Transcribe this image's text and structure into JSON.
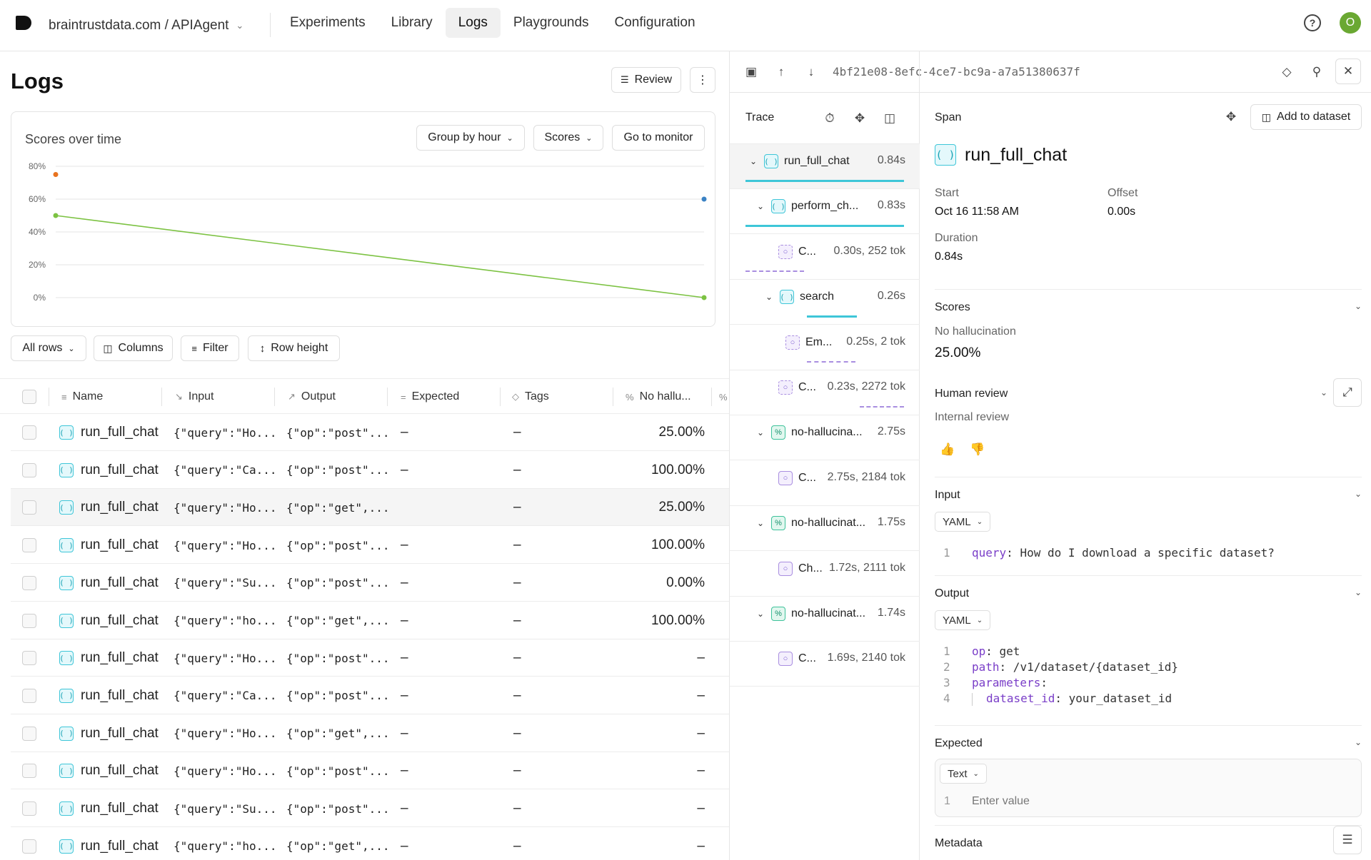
{
  "nav": {
    "project": "braintrustdata.com / APIAgent",
    "tabs": [
      {
        "label": "Experiments"
      },
      {
        "label": "Library"
      },
      {
        "label": "Logs"
      },
      {
        "label": "Playgrounds"
      },
      {
        "label": "Configuration"
      }
    ],
    "active_tab": "Logs",
    "avatar_initial": "O"
  },
  "logs": {
    "title": "Logs",
    "review_label": "Review",
    "chart": {
      "title": "Scores over time",
      "group_by_label": "Group by hour",
      "scores_label": "Scores",
      "monitor_label": "Go to monitor",
      "y_ticks": [
        "80%",
        "60%",
        "40%",
        "20%",
        "0%"
      ]
    },
    "filters": {
      "all_rows": "All rows",
      "columns": "Columns",
      "filter": "Filter",
      "row_height": "Row height"
    },
    "columns": [
      "Name",
      "Input",
      "Output",
      "Expected",
      "Tags",
      "No hallu...",
      "%"
    ],
    "rows": [
      {
        "name": "run_full_chat",
        "input": "{\"query\":\"Ho...",
        "output": "{\"op\":\"post\"...",
        "expected": "–",
        "tags": "–",
        "score": "25.00%"
      },
      {
        "name": "run_full_chat",
        "input": "{\"query\":\"Ca...",
        "output": "{\"op\":\"post\"...",
        "expected": "–",
        "tags": "–",
        "score": "100.00%"
      },
      {
        "name": "run_full_chat",
        "input": "{\"query\":\"Ho...",
        "output": "{\"op\":\"get\",...",
        "expected": "",
        "tags": "–",
        "score": "25.00%"
      },
      {
        "name": "run_full_chat",
        "input": "{\"query\":\"Ho...",
        "output": "{\"op\":\"post\"...",
        "expected": "–",
        "tags": "–",
        "score": "100.00%"
      },
      {
        "name": "run_full_chat",
        "input": "{\"query\":\"Su...",
        "output": "{\"op\":\"post\"...",
        "expected": "–",
        "tags": "–",
        "score": "0.00%"
      },
      {
        "name": "run_full_chat",
        "input": "{\"query\":\"ho...",
        "output": "{\"op\":\"get\",...",
        "expected": "–",
        "tags": "–",
        "score": "100.00%"
      },
      {
        "name": "run_full_chat",
        "input": "{\"query\":\"Ho...",
        "output": "{\"op\":\"post\"...",
        "expected": "–",
        "tags": "–",
        "score": "–"
      },
      {
        "name": "run_full_chat",
        "input": "{\"query\":\"Ca...",
        "output": "{\"op\":\"post\"...",
        "expected": "–",
        "tags": "–",
        "score": "–"
      },
      {
        "name": "run_full_chat",
        "input": "{\"query\":\"Ho...",
        "output": "{\"op\":\"get\",...",
        "expected": "–",
        "tags": "–",
        "score": "–"
      },
      {
        "name": "run_full_chat",
        "input": "{\"query\":\"Ho...",
        "output": "{\"op\":\"post\"...",
        "expected": "–",
        "tags": "–",
        "score": "–"
      },
      {
        "name": "run_full_chat",
        "input": "{\"query\":\"Su...",
        "output": "{\"op\":\"post\"...",
        "expected": "–",
        "tags": "–",
        "score": "–"
      },
      {
        "name": "run_full_chat",
        "input": "{\"query\":\"ho...",
        "output": "{\"op\":\"get\",...",
        "expected": "–",
        "tags": "–",
        "score": "–"
      }
    ]
  },
  "chart_data": {
    "type": "line",
    "title": "Scores over time",
    "y_ticks": [
      "80%",
      "60%",
      "40%",
      "20%",
      "0%"
    ],
    "ylim": [
      0,
      80
    ],
    "grid": true,
    "series": [
      {
        "color": "#7cc242",
        "points": [
          {
            "x": 0,
            "y": 50
          },
          {
            "x": 1,
            "y": 0
          }
        ]
      },
      {
        "color": "#e8731f",
        "points": [
          {
            "x": 0,
            "y": 75
          }
        ]
      },
      {
        "color": "#3b82c4",
        "points": [
          {
            "x": 1,
            "y": 60
          }
        ]
      }
    ]
  },
  "trace": {
    "id": "4bf21e08-8efc-4ce7-bc9a-a7a51380637f",
    "label": "Trace",
    "nodes": [
      {
        "label": "run_full_chat",
        "duration": "0.84s",
        "kind": "function"
      },
      {
        "label": "perform_ch...",
        "duration": "0.83s",
        "kind": "function"
      },
      {
        "label": "C...",
        "duration": "0.30s, 252 tok",
        "kind": "llm"
      },
      {
        "label": "search",
        "duration": "0.26s",
        "kind": "function"
      },
      {
        "label": "Em...",
        "duration": "0.25s, 2 tok",
        "kind": "llm"
      },
      {
        "label": "C...",
        "duration": "0.23s, 2272 tok",
        "kind": "llm"
      },
      {
        "label": "no-hallucina...",
        "duration": "2.75s",
        "kind": "score"
      },
      {
        "label": "C...",
        "duration": "2.75s, 2184 tok",
        "kind": "llm"
      },
      {
        "label": "no-hallucinat...",
        "duration": "1.75s",
        "kind": "score"
      },
      {
        "label": "Ch...",
        "duration": "1.72s, 2111 tok",
        "kind": "llm"
      },
      {
        "label": "no-hallucinat...",
        "duration": "1.74s",
        "kind": "score"
      },
      {
        "label": "C...",
        "duration": "1.69s, 2140 tok",
        "kind": "llm"
      }
    ]
  },
  "span": {
    "label": "Span",
    "add_to_dataset": "Add to dataset",
    "title": "run_full_chat",
    "start_label": "Start",
    "start_value": "Oct 16 11:58 AM",
    "offset_label": "Offset",
    "offset_value": "0.00s",
    "duration_label": "Duration",
    "duration_value": "0.84s",
    "scores_label": "Scores",
    "score_name": "No hallucination",
    "score_value": "25.00%",
    "human_review_label": "Human review",
    "internal_review_label": "Internal review",
    "input_label": "Input",
    "input_format": "YAML",
    "input_lines": [
      {
        "n": "1",
        "key": "query",
        "value": " How do I download a specific dataset?"
      }
    ],
    "output_label": "Output",
    "output_format": "YAML",
    "output_lines": [
      {
        "n": "1",
        "key": "op",
        "value": " get"
      },
      {
        "n": "2",
        "key": "path",
        "value": " /v1/dataset/{dataset_id}"
      },
      {
        "n": "3",
        "key": "parameters",
        "value": ""
      },
      {
        "n": "4",
        "key": "dataset_id",
        "value": " your_dataset_id"
      }
    ],
    "expected_label": "Expected",
    "expected_format": "Text",
    "expected_line_no": "1",
    "expected_placeholder": "Enter value",
    "metadata_label": "Metadata"
  }
}
